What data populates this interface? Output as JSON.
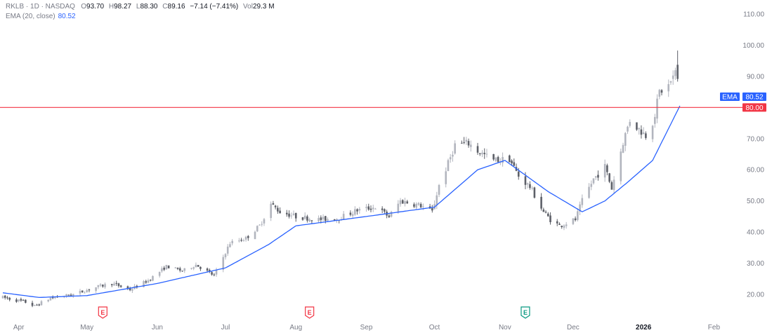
{
  "legend": {
    "symbol": "RKLB · 1D · NASDAQ",
    "o_label": "O",
    "o_value": "93.70",
    "h_label": "H",
    "h_value": "98.27",
    "l_label": "L",
    "l_value": "88.30",
    "c_label": "C",
    "c_value": "89.16",
    "change": "−7.14 (−7.41%)",
    "vol_label": "Vol",
    "vol_value": "29.3 M",
    "ema_label": "EMA (20, close)",
    "ema_value": "80.52"
  },
  "colors": {
    "candle": "#5d6068",
    "candle_light": "#b2b5be",
    "ema_line": "#2962ff",
    "hline": "#f23645",
    "axis_text": "#787b86",
    "earnings_red": "#f23645",
    "earnings_green": "#089981"
  },
  "chart_data": {
    "type": "candlestick",
    "ylim": [
      15,
      112
    ],
    "y_ticks": [
      {
        "value": 110,
        "label": "110.00"
      },
      {
        "value": 100,
        "label": "100.00"
      },
      {
        "value": 90,
        "label": "90.00"
      },
      {
        "value": 70,
        "label": "70.00"
      },
      {
        "value": 60,
        "label": "60.00"
      },
      {
        "value": 50,
        "label": "50.00"
      },
      {
        "value": 40,
        "label": "40.00"
      },
      {
        "value": 30,
        "label": "30.00"
      },
      {
        "value": 20,
        "label": "20.00"
      }
    ],
    "x_range": [
      "2025-03-25",
      "2026-02-12"
    ],
    "x_ticks": [
      {
        "date": "2025-04-01",
        "label": "Apr",
        "bold": false
      },
      {
        "date": "2025-05-01",
        "label": "May",
        "bold": false
      },
      {
        "date": "2025-06-01",
        "label": "Jun",
        "bold": false
      },
      {
        "date": "2025-07-01",
        "label": "Jul",
        "bold": false
      },
      {
        "date": "2025-08-01",
        "label": "Aug",
        "bold": false
      },
      {
        "date": "2025-09-01",
        "label": "Sep",
        "bold": false
      },
      {
        "date": "2025-10-01",
        "label": "Oct",
        "bold": false
      },
      {
        "date": "2025-11-01",
        "label": "Nov",
        "bold": false
      },
      {
        "date": "2025-12-01",
        "label": "Dec",
        "bold": false
      },
      {
        "date": "2026-01-01",
        "label": "2026",
        "bold": true
      },
      {
        "date": "2026-02-01",
        "label": "Feb",
        "bold": false
      }
    ],
    "horizontal_line": {
      "value": 80.0,
      "label": "80.00"
    },
    "ema_badge": {
      "label": "EMA",
      "value": "80.52",
      "y": 80.52
    },
    "earnings_markers": [
      {
        "date": "2025-05-08",
        "label": "E",
        "kind": "past"
      },
      {
        "date": "2025-08-07",
        "label": "E",
        "kind": "past"
      },
      {
        "date": "2025-11-10",
        "label": "E",
        "kind": "upcoming"
      }
    ],
    "price_anchors": [
      [
        "2025-03-25",
        19.0
      ],
      [
        "2025-04-04",
        17.5
      ],
      [
        "2025-04-08",
        16.2
      ],
      [
        "2025-04-15",
        18.8
      ],
      [
        "2025-04-25",
        20.0
      ],
      [
        "2025-05-06",
        22.5
      ],
      [
        "2025-05-12",
        23.5
      ],
      [
        "2025-05-20",
        21.5
      ],
      [
        "2025-05-28",
        24.5
      ],
      [
        "2025-06-05",
        29.0
      ],
      [
        "2025-06-12",
        27.5
      ],
      [
        "2025-06-18",
        29.5
      ],
      [
        "2025-06-26",
        26.0
      ],
      [
        "2025-07-03",
        36.5
      ],
      [
        "2025-07-10",
        38.0
      ],
      [
        "2025-07-16",
        42.0
      ],
      [
        "2025-07-21",
        49.0
      ],
      [
        "2025-07-25",
        46.5
      ],
      [
        "2025-08-01",
        45.0
      ],
      [
        "2025-08-11",
        44.0
      ],
      [
        "2025-08-20",
        44.5
      ],
      [
        "2025-08-28",
        47.0
      ],
      [
        "2025-09-05",
        48.0
      ],
      [
        "2025-09-11",
        45.0
      ],
      [
        "2025-09-16",
        50.0
      ],
      [
        "2025-09-25",
        48.5
      ],
      [
        "2025-09-30",
        46.5
      ],
      [
        "2025-10-03",
        55.0
      ],
      [
        "2025-10-07",
        62.0
      ],
      [
        "2025-10-10",
        68.0
      ],
      [
        "2025-10-16",
        68.5
      ],
      [
        "2025-10-20",
        66.0
      ],
      [
        "2025-10-27",
        63.0
      ],
      [
        "2025-11-03",
        63.5
      ],
      [
        "2025-11-07",
        58.0
      ],
      [
        "2025-11-12",
        54.5
      ],
      [
        "2025-11-18",
        46.5
      ],
      [
        "2025-11-21",
        44.0
      ],
      [
        "2025-11-25",
        42.0
      ],
      [
        "2025-12-02",
        44.0
      ],
      [
        "2025-12-05",
        50.0
      ],
      [
        "2025-12-10",
        57.0
      ],
      [
        "2025-12-15",
        61.0
      ],
      [
        "2025-12-18",
        54.0
      ],
      [
        "2025-12-23",
        69.0
      ],
      [
        "2025-12-26",
        76.0
      ],
      [
        "2025-12-30",
        73.0
      ],
      [
        "2026-01-03",
        70.5
      ],
      [
        "2026-01-06",
        78.0
      ],
      [
        "2026-01-08",
        85.0
      ],
      [
        "2026-01-12",
        87.0
      ],
      [
        "2026-01-15",
        91.0
      ],
      [
        "2026-01-16",
        96.3
      ],
      [
        "2026-01-17",
        89.16
      ]
    ],
    "ema_anchors": [
      [
        "2025-03-25",
        20.5
      ],
      [
        "2025-04-10",
        19.0
      ],
      [
        "2025-05-01",
        19.6
      ],
      [
        "2025-06-01",
        23.5
      ],
      [
        "2025-07-01",
        28.5
      ],
      [
        "2025-07-20",
        36.0
      ],
      [
        "2025-08-01",
        42.0
      ],
      [
        "2025-09-01",
        45.0
      ],
      [
        "2025-10-01",
        48.0
      ],
      [
        "2025-10-20",
        60.0
      ],
      [
        "2025-11-01",
        63.0
      ],
      [
        "2025-11-20",
        53.0
      ],
      [
        "2025-12-05",
        46.5
      ],
      [
        "2025-12-15",
        50.0
      ],
      [
        "2025-12-25",
        56.0
      ],
      [
        "2026-01-05",
        63.0
      ],
      [
        "2026-01-17",
        80.52
      ]
    ],
    "last_candle": {
      "date": "2026-01-17",
      "open": 93.7,
      "high": 98.27,
      "low": 88.3,
      "close": 89.16
    },
    "ema_period": 20
  }
}
